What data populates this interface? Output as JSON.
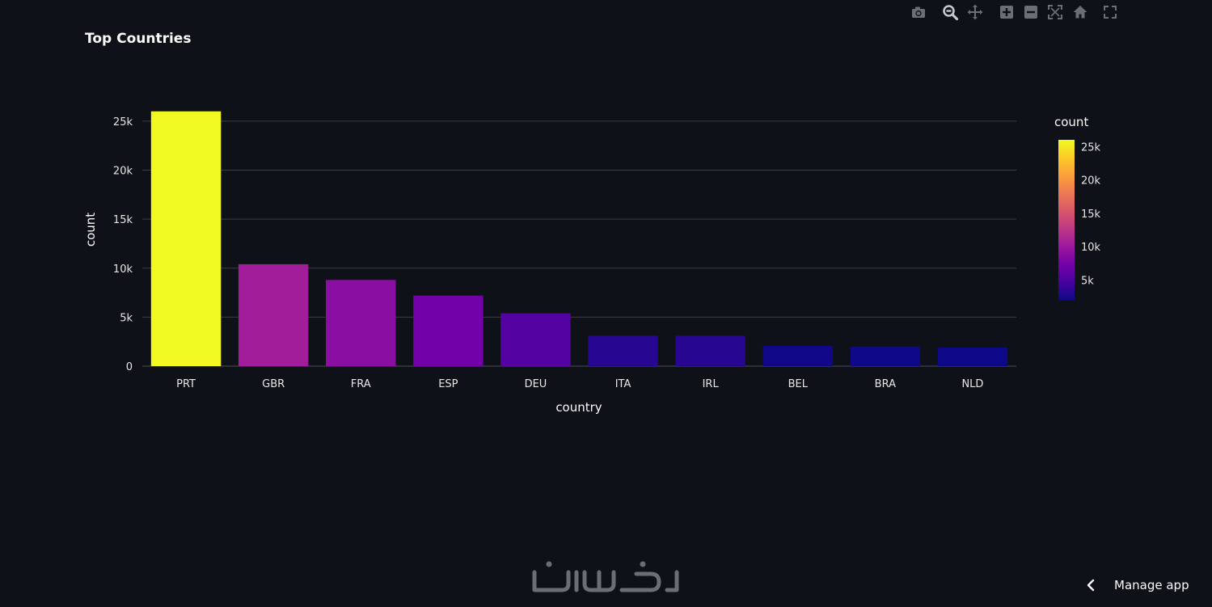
{
  "chart_data": {
    "type": "bar",
    "title": "Top Countries",
    "xlabel": "country",
    "ylabel": "count",
    "categories": [
      "PRT",
      "GBR",
      "FRA",
      "ESP",
      "DEU",
      "ITA",
      "IRL",
      "BEL",
      "BRA",
      "NLD"
    ],
    "values": [
      26000,
      10400,
      8800,
      7200,
      5400,
      3100,
      3100,
      2100,
      2000,
      1900
    ],
    "ylim": [
      0,
      27300
    ],
    "yticks": [
      0,
      5000,
      10000,
      15000,
      20000,
      25000
    ],
    "ytick_labels": [
      "0",
      "5k",
      "10k",
      "15k",
      "20k",
      "25k"
    ],
    "grid": true,
    "colorscale": "plasma",
    "colorbar": {
      "title": "count",
      "range": [
        1900,
        26000
      ],
      "ticks": [
        5000,
        10000,
        15000,
        20000,
        25000
      ],
      "tick_labels": [
        "5k",
        "10k",
        "15k",
        "20k",
        "25k"
      ],
      "placement": "right"
    }
  },
  "modebar": {
    "icons": [
      "camera-icon",
      "zoom-icon",
      "pan-icon",
      "zoom-in-icon",
      "zoom-out-icon",
      "autoscale-icon",
      "home-icon",
      "fullscreen-icon"
    ]
  },
  "footer": {
    "manage_app_label": "Manage app"
  },
  "colors": {
    "background": "#0e1117",
    "grid": "#3a3d44",
    "text": "#fafafa",
    "tick_text": "#e6e6e6",
    "icon": "#6b6e75"
  }
}
